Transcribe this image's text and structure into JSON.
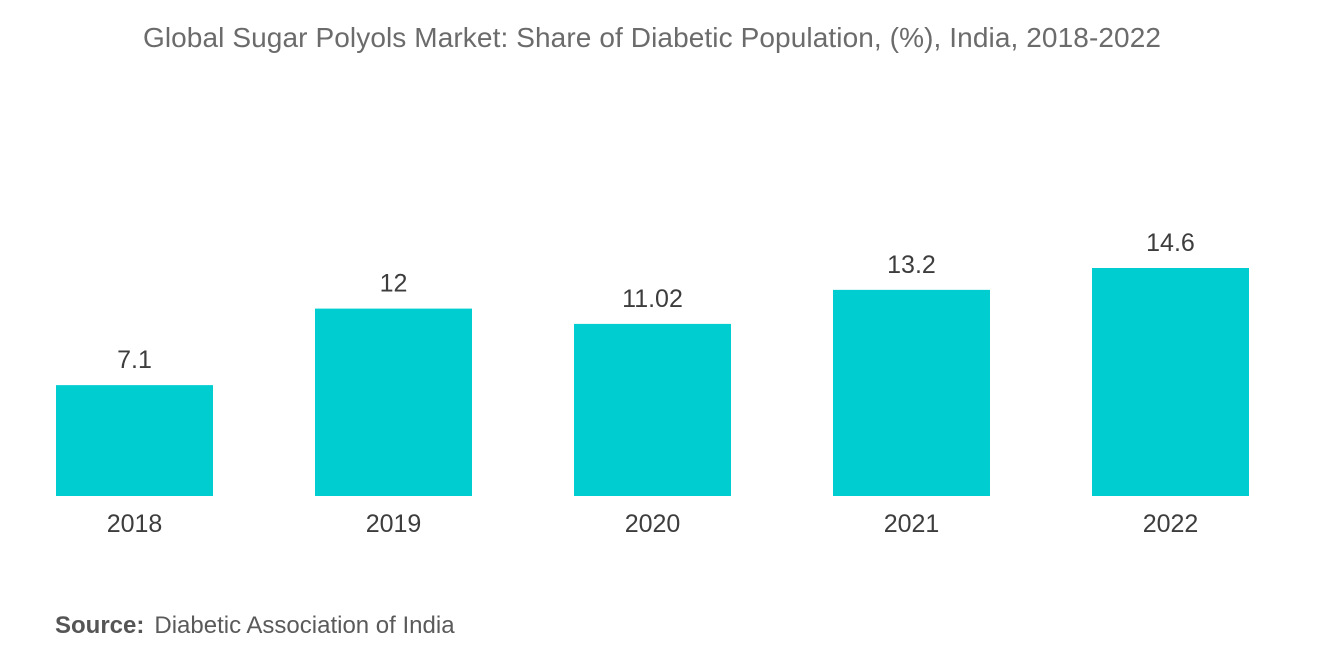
{
  "chart_data": {
    "type": "bar",
    "title": "Global Sugar Polyols Market: Share of Diabetic Population, (%), India, 2018-2022",
    "categories": [
      "2018",
      "2019",
      "2020",
      "2021",
      "2022"
    ],
    "values": [
      7.1,
      12,
      11.02,
      13.2,
      14.6
    ],
    "value_labels": [
      "7.1",
      "12",
      "11.02",
      "13.2",
      "14.6"
    ],
    "xlabel": "",
    "ylabel": "",
    "ylim": [
      0,
      14.6
    ],
    "grid": false,
    "legend": "none",
    "bar_color": "#00cdd0"
  },
  "source": {
    "label": "Source:",
    "text": "Diabetic Association of India"
  }
}
